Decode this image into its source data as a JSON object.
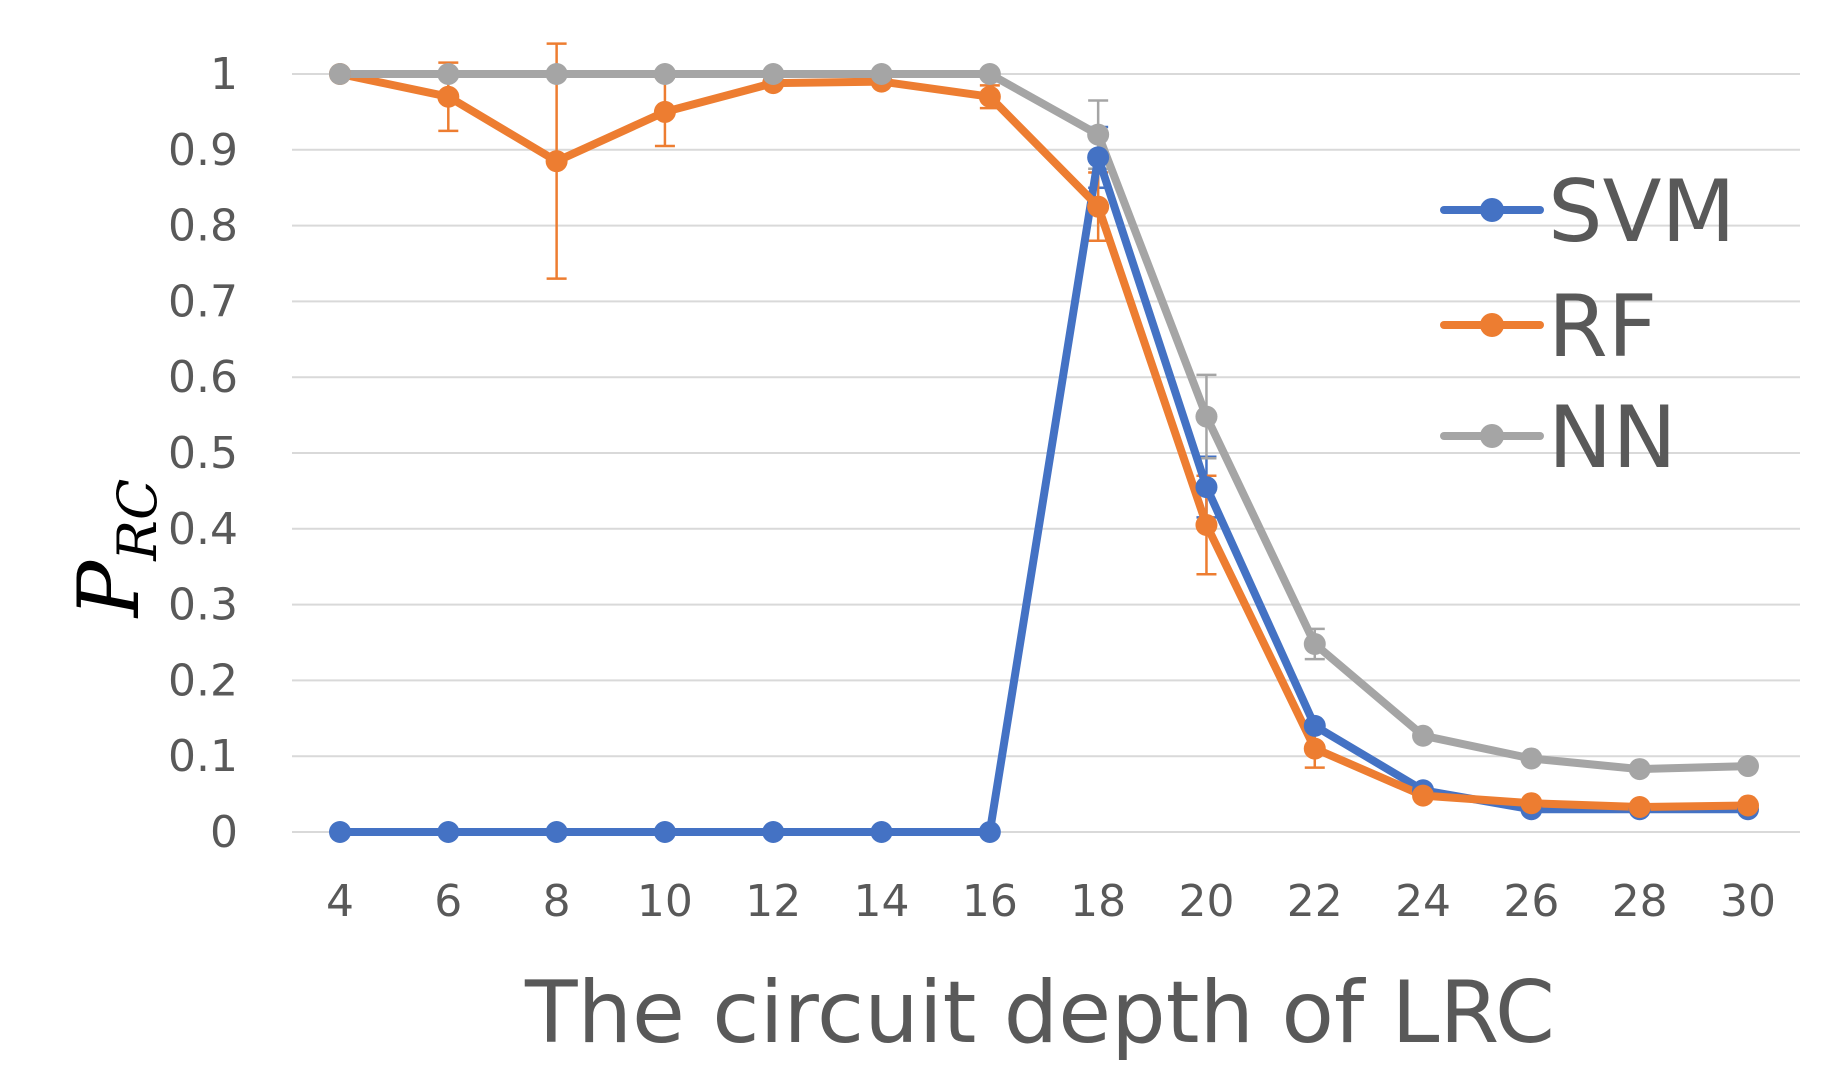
{
  "chart_data": {
    "type": "line",
    "title": "",
    "xlabel": "The circuit depth of LRC",
    "ylabel": {
      "main": "P",
      "subscript": "RC"
    },
    "categories": [
      "4",
      "6",
      "8",
      "10",
      "12",
      "14",
      "16",
      "18",
      "20",
      "22",
      "24",
      "26",
      "28",
      "30"
    ],
    "y_ticks": [
      "0",
      "0.1",
      "0.2",
      "0.3",
      "0.4",
      "0.5",
      "0.6",
      "0.7",
      "0.8",
      "0.9",
      "1"
    ],
    "ylim": [
      0,
      1
    ],
    "grid": true,
    "legend_position": "right",
    "series": [
      {
        "name": "SVM",
        "color": "#4472C4",
        "values": [
          0,
          0,
          0,
          0,
          0,
          0,
          0,
          0.89,
          0.455,
          0.14,
          0.055,
          0.03,
          0.03,
          0.03
        ],
        "errors": [
          0,
          0,
          0,
          0,
          0,
          0,
          0,
          0.04,
          0.04,
          0,
          0,
          0,
          0,
          0
        ]
      },
      {
        "name": "RF",
        "color": "#ED7D31",
        "values": [
          1,
          0.97,
          0.885,
          0.95,
          0.988,
          0.99,
          0.97,
          0.825,
          0.405,
          0.11,
          0.048,
          0.038,
          0.033,
          0.035
        ],
        "errors": [
          0,
          0.045,
          0.155,
          0.045,
          0,
          0,
          0.015,
          0.045,
          0.065,
          0.025,
          0,
          0,
          0,
          0
        ]
      },
      {
        "name": "NN",
        "color": "#A5A5A5",
        "values": [
          1,
          1,
          1,
          1,
          1,
          1,
          1,
          0.92,
          0.548,
          0.248,
          0.127,
          0.097,
          0.083,
          0.087
        ],
        "errors": [
          0,
          0,
          0,
          0,
          0,
          0,
          0,
          0.045,
          0.055,
          0.02,
          0,
          0,
          0,
          0
        ]
      }
    ]
  }
}
